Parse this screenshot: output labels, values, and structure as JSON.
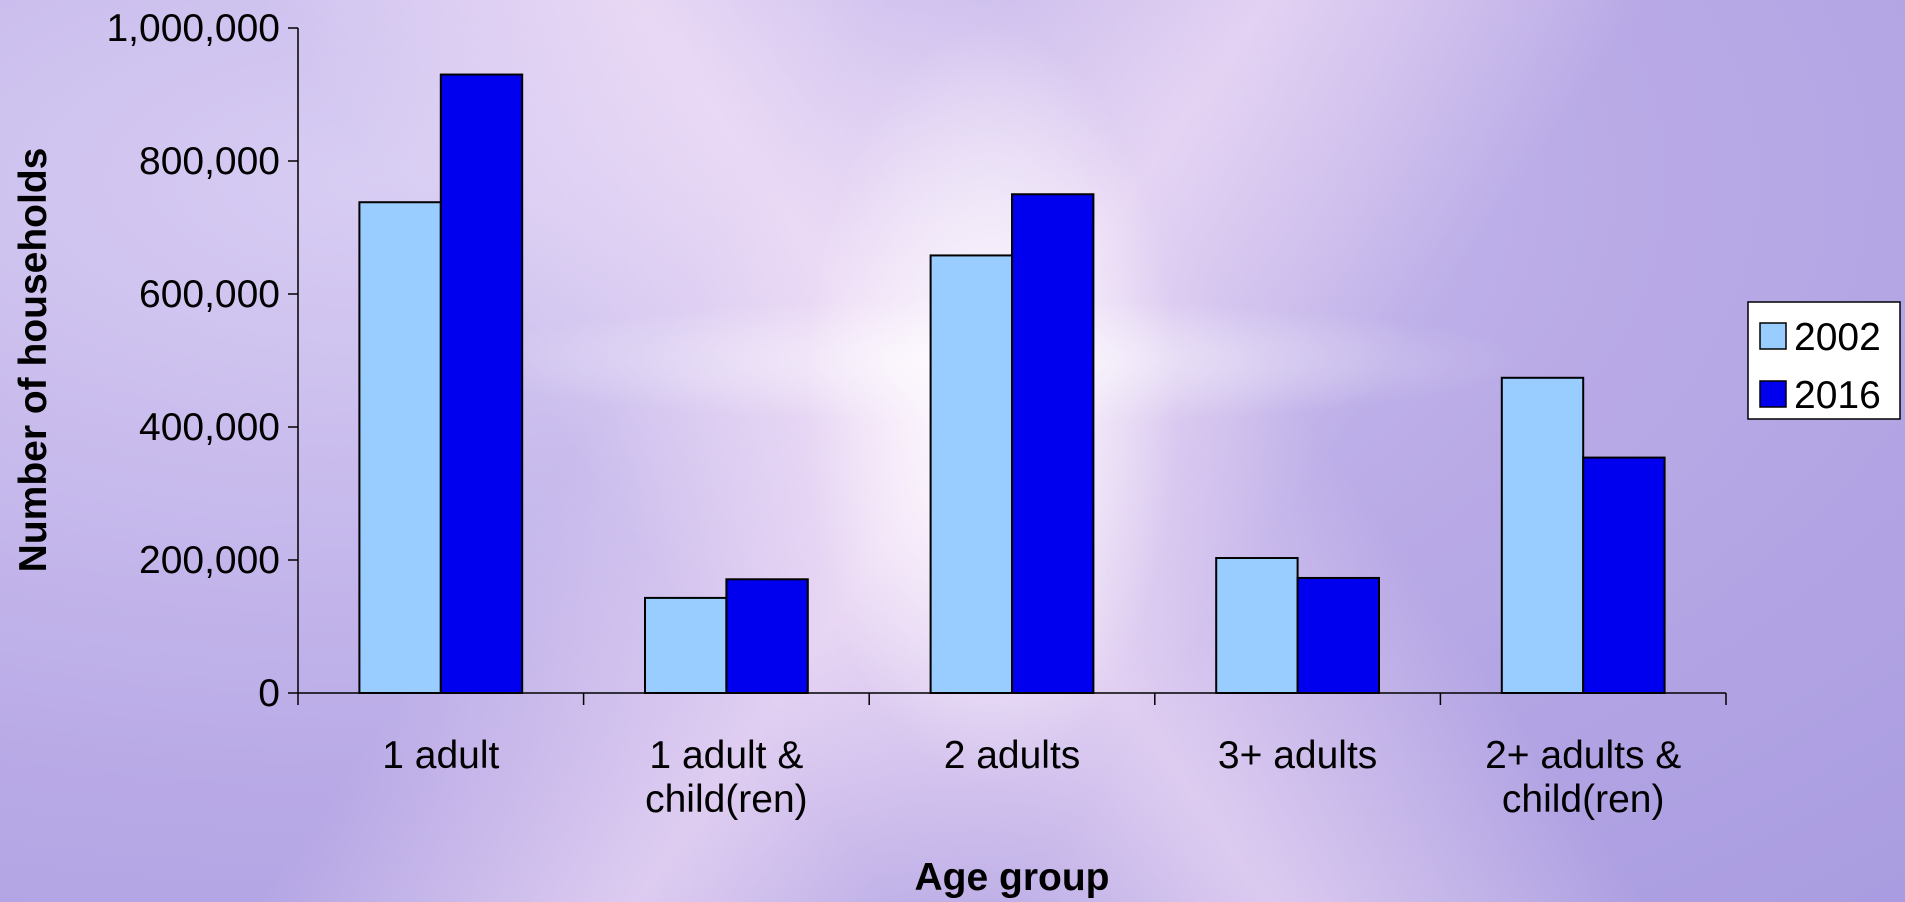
{
  "chart_data": {
    "type": "bar",
    "categories": [
      [
        "1 adult"
      ],
      [
        "1 adult &",
        "child(ren)"
      ],
      [
        "2 adults"
      ],
      [
        "3+ adults"
      ],
      [
        "2+ adults &",
        "child(ren)"
      ]
    ],
    "series": [
      {
        "name": "2002",
        "color": "#99ccff",
        "values": [
          738000,
          143000,
          658000,
          203000,
          474000
        ]
      },
      {
        "name": "2016",
        "color": "#0000ee",
        "values": [
          930000,
          171000,
          750000,
          173000,
          354000
        ]
      }
    ],
    "xlabel": "Age group",
    "ylabel": "Number of households",
    "ylim": [
      0,
      1000000
    ],
    "yticks": [
      "0",
      "200,000",
      "400,000",
      "600,000",
      "800,000",
      "1,000,000"
    ],
    "ytick_values": [
      0,
      200000,
      400000,
      600000,
      800000,
      1000000
    ],
    "grid": false,
    "legend_position": "right"
  }
}
